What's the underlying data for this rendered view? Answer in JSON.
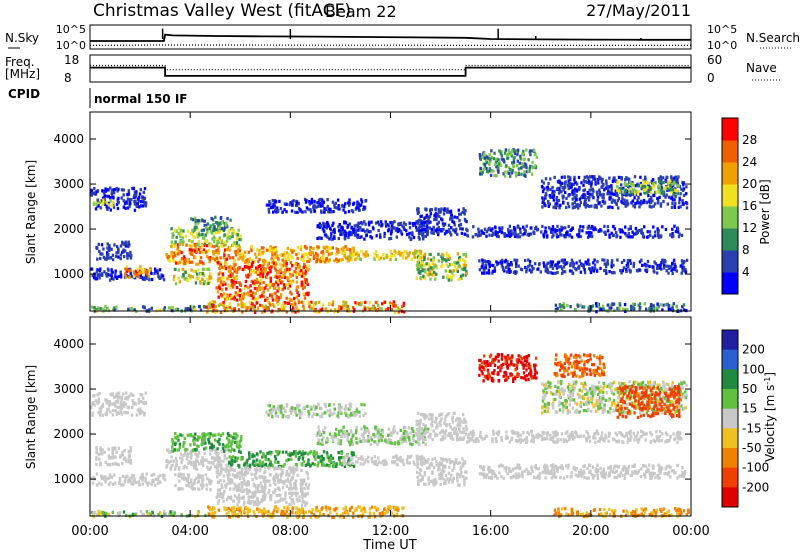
{
  "header": {
    "station": "Christmas Valley West (fitACF)",
    "beam": "Beam 22",
    "date": "27/May/2011"
  },
  "time_axis": {
    "label": "Time UT",
    "ticks": [
      "00:00",
      "04:00",
      "08:00",
      "12:00",
      "16:00",
      "20:00",
      "00:00"
    ],
    "range_hours": [
      0,
      24
    ]
  },
  "colors": {
    "power": [
      "#0000ff",
      "#2a3fb0",
      "#2f8a5a",
      "#7ec850",
      "#f0e020",
      "#f0a000",
      "#f06000",
      "#ff0000"
    ],
    "velocity": [
      "#2020a0",
      "#2a60d0",
      "#208a40",
      "#60c040",
      "#c8c8c8",
      "#f0c020",
      "#f08000",
      "#f04000",
      "#e00000"
    ]
  },
  "chart_data": [
    {
      "type": "line",
      "name": "noise-panel",
      "left_label": "N.Sky",
      "right_label": "N.Search",
      "left_ticks": [
        "10^5",
        "10^0"
      ],
      "right_ticks": [
        "10^5",
        "10^0"
      ],
      "series": [
        {
          "name": "N.Sky",
          "style": "solid",
          "x": [
            0,
            2.95,
            3.0,
            3.3,
            5,
            7,
            9,
            11,
            13,
            15,
            16,
            18,
            20,
            22,
            24
          ],
          "y": [
            0.3,
            0.3,
            0.62,
            0.58,
            0.55,
            0.53,
            0.52,
            0.5,
            0.48,
            0.46,
            0.4,
            0.38,
            0.37,
            0.36,
            0.36
          ]
        },
        {
          "name": "N.Search",
          "style": "dotted",
          "x": [
            0,
            3,
            6,
            9,
            12,
            15,
            18,
            21,
            24
          ],
          "y": [
            0.08,
            0.1,
            0.1,
            0.09,
            0.09,
            0.08,
            0.08,
            0.08,
            0.08
          ]
        }
      ],
      "spikes": [
        [
          2.9,
          0.92
        ],
        [
          8.0,
          0.9
        ],
        [
          16.3,
          0.92
        ],
        [
          17.8,
          0.55
        ],
        [
          19.3,
          0.4
        ],
        [
          22.0,
          0.45
        ]
      ]
    },
    {
      "type": "line",
      "name": "frequency-panel",
      "left_label": "Freq. [MHz]",
      "right_label": "Nave",
      "left_ticks": [
        "18",
        "8"
      ],
      "right_ticks": [
        "60",
        "0"
      ],
      "series": [
        {
          "name": "Freq",
          "style": "solid",
          "x": [
            0,
            3.0,
            3.0,
            15.0,
            15.0,
            24
          ],
          "y": [
            14.5,
            14.5,
            9.3,
            9.3,
            14.5,
            14.5
          ]
        },
        {
          "name": "Nave",
          "style": "dotted",
          "x": [
            0,
            3.0,
            3.0,
            15.0,
            15.0,
            24
          ],
          "y": [
            47,
            47,
            31,
            31,
            47,
            47
          ]
        }
      ]
    },
    {
      "type": "table",
      "name": "cpid-panel",
      "label": "CPID",
      "segments": [
        {
          "start": 0,
          "end": 24,
          "text": "normal 150 IF"
        }
      ]
    },
    {
      "type": "heatmap",
      "name": "power-panel",
      "ylabel": "Slant Range [km]",
      "yticks": [
        1000,
        2000,
        3000,
        4000
      ],
      "ylim": [
        180,
        4600
      ],
      "xlim": [
        0,
        24
      ],
      "colorbar": {
        "label": "Power [dB]",
        "ticks": [
          "4",
          "8",
          "12",
          "16",
          "20",
          "24",
          "28"
        ],
        "range": [
          0,
          32
        ]
      },
      "blobs": [
        {
          "t0": 0.0,
          "t1": 2.2,
          "r0": 2450,
          "r1": 2950,
          "v": [
            2,
            6
          ]
        },
        {
          "t0": 0.1,
          "t1": 0.9,
          "r0": 2550,
          "r1": 2700,
          "v": [
            14,
            20
          ]
        },
        {
          "t0": 0.2,
          "t1": 1.6,
          "r0": 1350,
          "r1": 1750,
          "v": [
            3,
            8
          ]
        },
        {
          "t0": 0.0,
          "t1": 3.0,
          "r0": 900,
          "r1": 1150,
          "v": [
            2,
            8
          ]
        },
        {
          "t0": 1.3,
          "t1": 2.4,
          "r0": 950,
          "r1": 1200,
          "v": [
            16,
            30
          ]
        },
        {
          "t0": 3.0,
          "t1": 5.5,
          "r0": 1250,
          "r1": 1700,
          "v": [
            18,
            30
          ]
        },
        {
          "t0": 3.2,
          "t1": 6.0,
          "r0": 1650,
          "r1": 2050,
          "v": [
            10,
            20
          ]
        },
        {
          "t0": 4.0,
          "t1": 5.6,
          "r0": 2000,
          "r1": 2300,
          "v": [
            6,
            14
          ]
        },
        {
          "t0": 5.5,
          "t1": 10.5,
          "r0": 1300,
          "r1": 1650,
          "v": [
            16,
            28
          ]
        },
        {
          "t0": 5.0,
          "t1": 8.7,
          "r0": 450,
          "r1": 1300,
          "v": [
            18,
            32
          ]
        },
        {
          "t0": 3.3,
          "t1": 4.8,
          "r0": 800,
          "r1": 1150,
          "v": [
            10,
            22
          ]
        },
        {
          "t0": 4.6,
          "t1": 12.5,
          "r0": 180,
          "r1": 420,
          "v": [
            14,
            32
          ]
        },
        {
          "t0": 10.0,
          "t1": 13.5,
          "r0": 1350,
          "r1": 1550,
          "v": [
            14,
            24
          ]
        },
        {
          "t0": 13.0,
          "t1": 15.0,
          "r0": 900,
          "r1": 1500,
          "v": [
            8,
            22
          ]
        },
        {
          "t0": 7.0,
          "t1": 11.0,
          "r0": 2400,
          "r1": 2700,
          "v": [
            2,
            6
          ]
        },
        {
          "t0": 9.0,
          "t1": 13.5,
          "r0": 1800,
          "r1": 2200,
          "v": [
            2,
            6
          ]
        },
        {
          "t0": 13.0,
          "t1": 15.0,
          "r0": 1900,
          "r1": 2500,
          "v": [
            2,
            8
          ]
        },
        {
          "t0": 15.0,
          "t1": 23.6,
          "r0": 1850,
          "r1": 2100,
          "v": [
            2,
            6
          ]
        },
        {
          "t0": 15.5,
          "t1": 23.8,
          "r0": 1050,
          "r1": 1350,
          "v": [
            2,
            8
          ]
        },
        {
          "t0": 15.5,
          "t1": 17.8,
          "r0": 3200,
          "r1": 3800,
          "v": [
            4,
            16
          ]
        },
        {
          "t0": 18.0,
          "t1": 23.8,
          "r0": 2500,
          "r1": 3200,
          "v": [
            2,
            8
          ]
        },
        {
          "t0": 21.0,
          "t1": 23.5,
          "r0": 2800,
          "r1": 3100,
          "v": [
            8,
            20
          ]
        },
        {
          "t0": 18.5,
          "t1": 23.9,
          "r0": 200,
          "r1": 380,
          "v": [
            2,
            16
          ]
        },
        {
          "t0": 0.0,
          "t1": 4.6,
          "r0": 200,
          "r1": 320,
          "v": [
            4,
            18
          ]
        }
      ]
    },
    {
      "type": "heatmap",
      "name": "velocity-panel",
      "ylabel": "Slant Range [km]",
      "yticks": [
        1000,
        2000,
        3000,
        4000
      ],
      "ylim": [
        180,
        4600
      ],
      "xlim": [
        0,
        24
      ],
      "colorbar": {
        "label": "Velocity [m s-1]",
        "ticks": [
          "200",
          "100",
          "50",
          "15",
          "-15",
          "-50",
          "-100",
          "-200"
        ],
        "range": [
          250,
          -250
        ]
      },
      "blobs": [
        {
          "t0": 0.0,
          "t1": 2.2,
          "r0": 2450,
          "r1": 2950,
          "v": [
            -10,
            10
          ]
        },
        {
          "t0": 0.2,
          "t1": 1.6,
          "r0": 1350,
          "r1": 1750,
          "v": [
            -10,
            10
          ]
        },
        {
          "t0": 0.0,
          "t1": 3.0,
          "r0": 900,
          "r1": 1150,
          "v": [
            -10,
            10
          ]
        },
        {
          "t0": 3.0,
          "t1": 5.5,
          "r0": 1250,
          "r1": 1700,
          "v": [
            -10,
            10
          ]
        },
        {
          "t0": 3.2,
          "t1": 6.0,
          "r0": 1650,
          "r1": 2050,
          "v": [
            20,
            60
          ]
        },
        {
          "t0": 5.5,
          "t1": 10.5,
          "r0": 1300,
          "r1": 1650,
          "v": [
            30,
            80
          ]
        },
        {
          "t0": 5.0,
          "t1": 8.7,
          "r0": 450,
          "r1": 1300,
          "v": [
            -12,
            12
          ]
        },
        {
          "t0": 3.3,
          "t1": 4.8,
          "r0": 800,
          "r1": 1150,
          "v": [
            -12,
            12
          ]
        },
        {
          "t0": 4.6,
          "t1": 12.5,
          "r0": 180,
          "r1": 420,
          "v": [
            -70,
            -20
          ]
        },
        {
          "t0": 10.0,
          "t1": 13.5,
          "r0": 1350,
          "r1": 1550,
          "v": [
            -12,
            12
          ]
        },
        {
          "t0": 13.0,
          "t1": 15.0,
          "r0": 900,
          "r1": 1500,
          "v": [
            -12,
            12
          ]
        },
        {
          "t0": 7.0,
          "t1": 11.0,
          "r0": 2400,
          "r1": 2700,
          "v": [
            -12,
            40
          ]
        },
        {
          "t0": 9.0,
          "t1": 13.5,
          "r0": 1800,
          "r1": 2200,
          "v": [
            -12,
            40
          ]
        },
        {
          "t0": 13.0,
          "t1": 15.0,
          "r0": 1900,
          "r1": 2500,
          "v": [
            -12,
            12
          ]
        },
        {
          "t0": 15.0,
          "t1": 23.6,
          "r0": 1850,
          "r1": 2100,
          "v": [
            -12,
            12
          ]
        },
        {
          "t0": 15.5,
          "t1": 23.8,
          "r0": 1050,
          "r1": 1350,
          "v": [
            -12,
            12
          ]
        },
        {
          "t0": 15.5,
          "t1": 17.8,
          "r0": 3200,
          "r1": 3800,
          "v": [
            -240,
            -180
          ]
        },
        {
          "t0": 18.0,
          "t1": 23.8,
          "r0": 2500,
          "r1": 3200,
          "v": [
            -30,
            40
          ]
        },
        {
          "t0": 21.0,
          "t1": 23.5,
          "r0": 2400,
          "r1": 3100,
          "v": [
            -200,
            -80
          ]
        },
        {
          "t0": 18.5,
          "t1": 20.5,
          "r0": 3300,
          "r1": 3800,
          "v": [
            -150,
            -60
          ]
        },
        {
          "t0": 18.5,
          "t1": 23.9,
          "r0": 200,
          "r1": 380,
          "v": [
            -90,
            -30
          ]
        },
        {
          "t0": 0.0,
          "t1": 4.6,
          "r0": 200,
          "r1": 320,
          "v": [
            -30,
            60
          ]
        }
      ]
    }
  ]
}
